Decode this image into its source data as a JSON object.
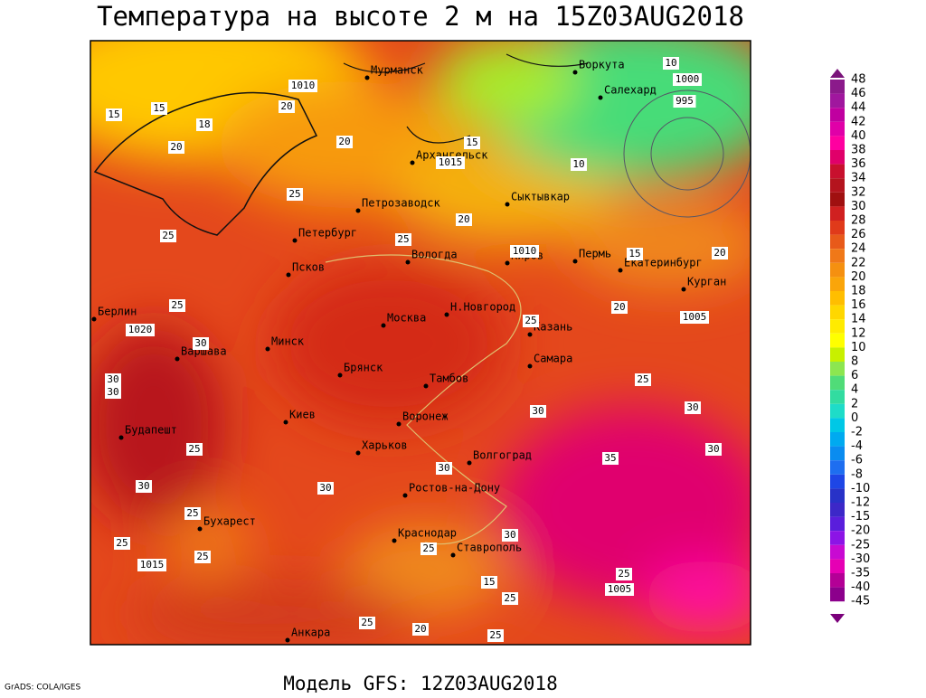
{
  "title": "Температура на высоте 2 м на 15Z03AUG2018",
  "footer": "Модель GFS: 12Z03AUG2018",
  "credit": "GrADS: COLA/IGES",
  "colorbar": {
    "labels": [
      48,
      46,
      44,
      42,
      40,
      38,
      36,
      34,
      32,
      30,
      28,
      26,
      24,
      22,
      20,
      18,
      16,
      14,
      12,
      10,
      8,
      6,
      4,
      2,
      0,
      -2,
      -4,
      -6,
      -8,
      -10,
      -12,
      -15,
      -20,
      -25,
      -30,
      -35,
      -40,
      -45
    ]
  },
  "cities": [
    "Мурманск",
    "Воркута",
    "Салехард",
    "Архангельск",
    "Петрозаводск",
    "Сыктывкар",
    "Петербург",
    "Вологда",
    "Киров",
    "Пермь",
    "Екатеринбург",
    "Курган",
    "Псков",
    "Берлин",
    "Москва",
    "Н.Новгород",
    "Казань",
    "Минск",
    "Варшава",
    "Брянск",
    "Самара",
    "Тамбов",
    "Киев",
    "Воронеж",
    "Будапешт",
    "Харьков",
    "Волгоград",
    "Ростов-на-Дону",
    "Бухарест",
    "Краснодар",
    "Ставрополь",
    "Анкара"
  ],
  "pressure_labels": [
    1010,
    1000,
    995,
    1015,
    1010,
    1020,
    1005,
    1015,
    1005
  ],
  "temperature_labels": [
    15,
    15,
    18,
    20,
    20,
    20,
    15,
    25,
    25,
    10,
    10,
    20,
    25,
    15,
    20,
    25,
    20,
    25,
    30,
    30,
    30,
    25,
    30,
    30,
    25,
    30,
    35,
    30,
    30,
    30,
    25,
    30,
    25,
    25,
    25,
    15,
    25,
    25,
    25,
    20,
    25
  ]
}
